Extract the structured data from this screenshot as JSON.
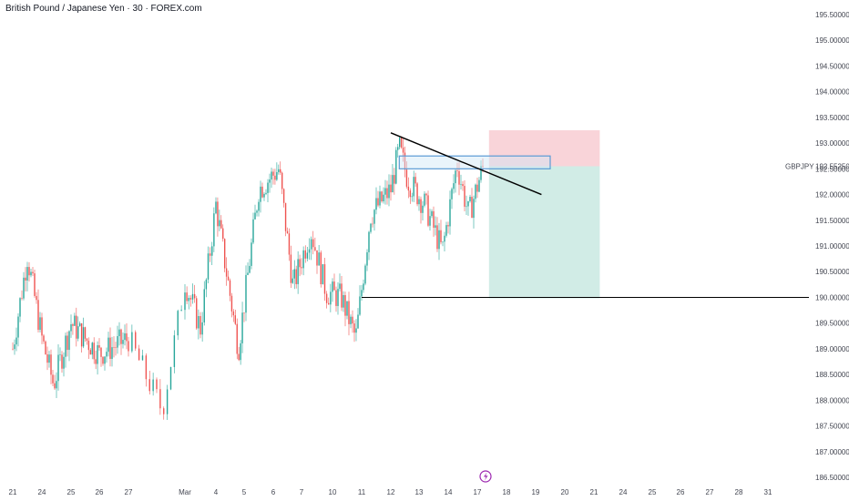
{
  "chart_data": {
    "type": "candlestick",
    "title": "British Pound / Japanese Yen · 30 · FOREX.com",
    "symbol": "GBPJPY",
    "last_price": "192.55250",
    "ylim": [
      186.5,
      195.5
    ],
    "x_ticks": [
      "21",
      "24",
      "25",
      "26",
      "27",
      "Mar",
      "4",
      "5",
      "6",
      "7",
      "10",
      "11",
      "12",
      "13",
      "14",
      "17",
      "18",
      "19",
      "20",
      "21",
      "24",
      "25",
      "26",
      "27",
      "28",
      "31"
    ],
    "y_ticks": [
      "195.50000",
      "195.00000",
      "194.50000",
      "194.00000",
      "193.50000",
      "193.00000",
      "192.50000",
      "192.00000",
      "191.50000",
      "191.00000",
      "190.50000",
      "190.00000",
      "189.50000",
      "189.00000",
      "188.50000",
      "188.00000",
      "187.50000",
      "187.00000",
      "186.50000"
    ],
    "trend_anchors": [
      {
        "day": 0,
        "price": 189.0
      },
      {
        "day": 0.5,
        "price": 190.8
      },
      {
        "day": 1,
        "price": 189.2
      },
      {
        "day": 1.4,
        "price": 188.3
      },
      {
        "day": 2,
        "price": 189.5
      },
      {
        "day": 3,
        "price": 188.9
      },
      {
        "day": 4,
        "price": 189.2
      },
      {
        "day": 4.6,
        "price": 187.8
      },
      {
        "day": 5,
        "price": 190.3
      },
      {
        "day": 5.5,
        "price": 189.4
      },
      {
        "day": 6,
        "price": 191.8
      },
      {
        "day": 6.8,
        "price": 189.0
      },
      {
        "day": 7.5,
        "price": 192.1
      },
      {
        "day": 8.2,
        "price": 192.5
      },
      {
        "day": 8.7,
        "price": 190.2
      },
      {
        "day": 9.3,
        "price": 191.3
      },
      {
        "day": 9.8,
        "price": 190.1
      },
      {
        "day": 10.3,
        "price": 190.0
      },
      {
        "day": 10.8,
        "price": 189.2
      },
      {
        "day": 11.3,
        "price": 191.6
      },
      {
        "day": 12,
        "price": 192.1
      },
      {
        "day": 12.3,
        "price": 192.9
      },
      {
        "day": 12.6,
        "price": 192.3
      },
      {
        "day": 13.2,
        "price": 191.8
      },
      {
        "day": 13.8,
        "price": 190.9
      },
      {
        "day": 14.3,
        "price": 192.6
      },
      {
        "day": 14.7,
        "price": 191.6
      },
      {
        "day": 15.2,
        "price": 192.55
      }
    ],
    "trendline": {
      "from": {
        "day": 12,
        "price": 193.2
      },
      "to": {
        "day": 17.2,
        "price": 192.0
      }
    },
    "resistance_box": {
      "day_start": 12.3,
      "day_end": 17.5,
      "price_low": 192.5,
      "price_high": 192.75
    },
    "horizontal_level": {
      "price": 190.0,
      "day_start": 11
    },
    "short_position": {
      "day_start": 15.4,
      "day_end": 19.2,
      "entry": 192.55,
      "stop": 193.25,
      "target": 189.98
    }
  }
}
